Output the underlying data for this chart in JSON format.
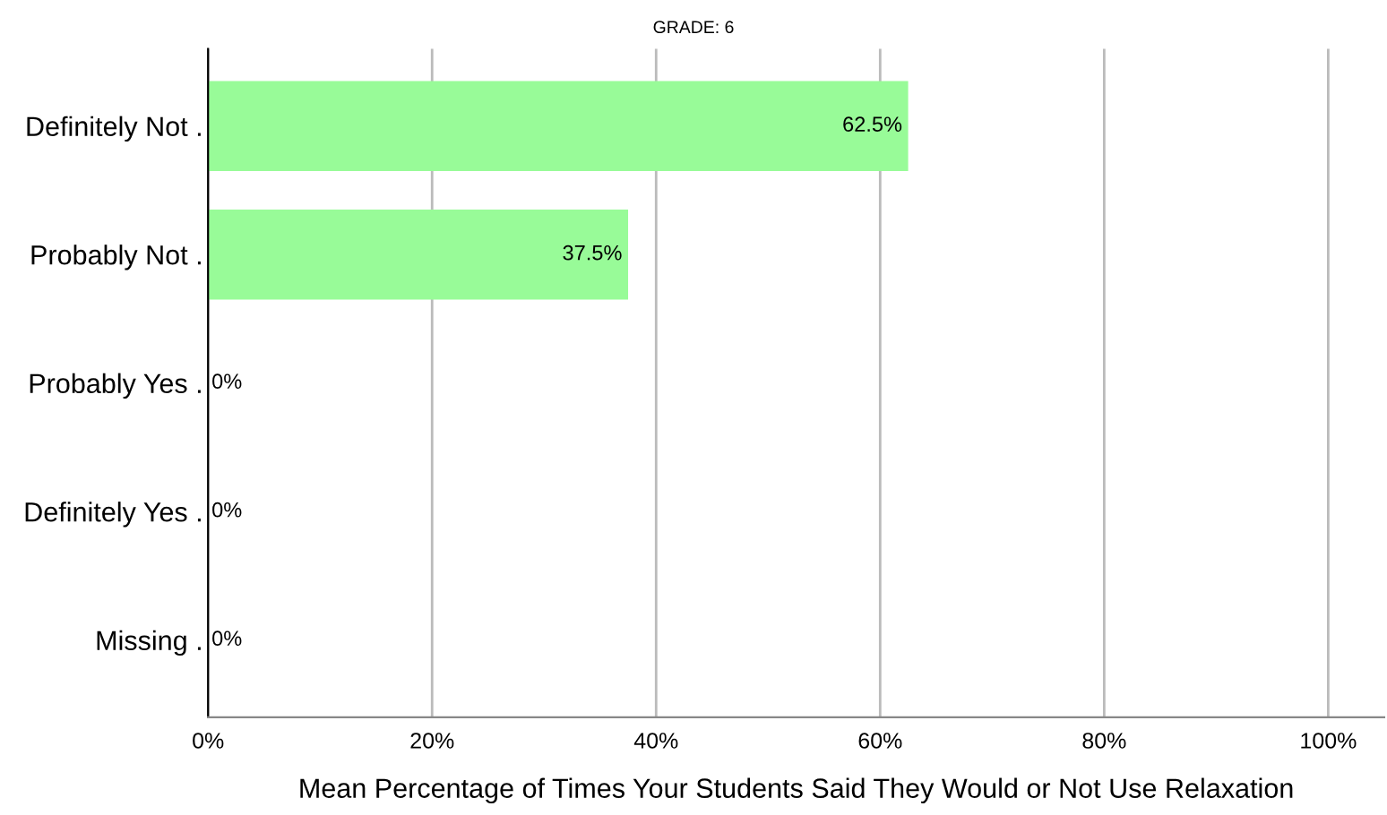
{
  "chart_data": {
    "type": "bar",
    "orientation": "horizontal",
    "title": "GRADE: 6",
    "xlabel": "Mean Percentage of Times Your Students Said They Would or Not Use Relaxation",
    "categories": [
      "Definitely Not .",
      "Probably Not .",
      "Probably Yes .",
      "Definitely Yes .",
      "Missing ."
    ],
    "values": [
      62.5,
      37.5,
      0,
      0,
      0
    ],
    "value_labels": [
      "62.5%",
      "37.5%",
      "0%",
      "0%",
      "0%"
    ],
    "color": "#98fb98",
    "xlim": [
      0,
      105
    ],
    "xticks": [
      {
        "value": 0,
        "label": "0%"
      },
      {
        "value": 20,
        "label": "20%"
      },
      {
        "value": 40,
        "label": "40%"
      },
      {
        "value": 60,
        "label": "60%"
      },
      {
        "value": 80,
        "label": "80%"
      },
      {
        "value": 100,
        "label": "100%"
      }
    ],
    "grid": "x"
  }
}
